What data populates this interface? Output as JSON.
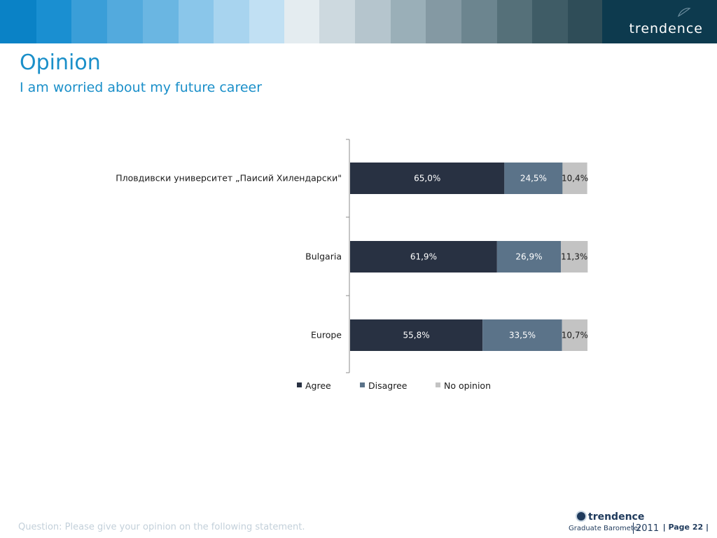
{
  "header": {
    "brand": "trendence",
    "strip_colors": [
      "#0a82c6",
      "#1a8fd1",
      "#3a9ed8",
      "#53aadd",
      "#6ab6e2",
      "#8ac6ea",
      "#a8d4ef",
      "#c1e0f3",
      "#e4ecf0",
      "#cdd9df",
      "#b5c5cd",
      "#9aafb8",
      "#8499a3",
      "#6c858f",
      "#557079",
      "#3f5c66",
      "#2f4d58",
      "#1e4050"
    ]
  },
  "title": "Opinion",
  "subtitle": "I am worried about my future career",
  "chart_data": {
    "type": "bar",
    "orientation": "horizontal",
    "stacked": true,
    "categories": [
      "Пловдивски университет „Паисий Хилендарски\"",
      "Bulgaria",
      "Europe"
    ],
    "series": [
      {
        "name": "Agree",
        "color": "#283142",
        "values": [
          65.0,
          61.9,
          55.8
        ],
        "labels": [
          "65,0%",
          "61,9%",
          "55,8%"
        ]
      },
      {
        "name": "Disagree",
        "color": "#5b7389",
        "values": [
          24.5,
          26.9,
          33.5
        ],
        "labels": [
          "24,5%",
          "26,9%",
          "33,5%"
        ]
      },
      {
        "name": "No opinion",
        "color": "#c3c3c3",
        "values": [
          10.4,
          11.3,
          10.7
        ],
        "labels": [
          "10,4%",
          "11,3%",
          "10,7%"
        ]
      }
    ],
    "xlim": [
      0,
      100
    ],
    "grid": false,
    "legend_position": "bottom"
  },
  "footer": {
    "question": "Question: Please give your opinion on the following statement.",
    "logo_name": "trendence",
    "logo_sub": "Graduate Barometer",
    "logo_year": "2011",
    "page": "| Page 22 |"
  }
}
